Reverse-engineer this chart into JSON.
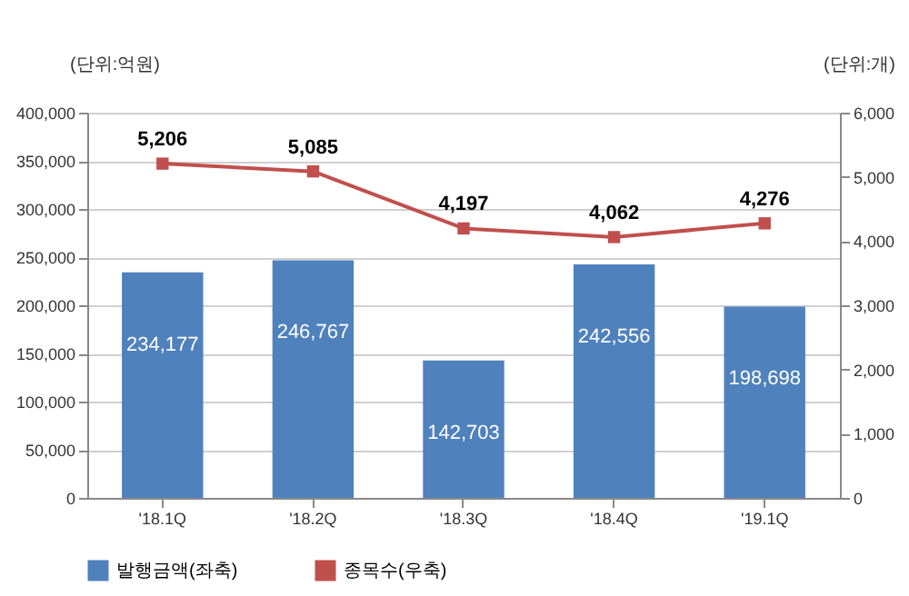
{
  "chart_data": {
    "type": "bar",
    "ylabel": "(단위:억원)",
    "y2label": "(단위:개)",
    "categories": [
      "'18.1Q",
      "'18.2Q",
      "'18.3Q",
      "'18.4Q",
      "'19.1Q"
    ],
    "series": [
      {
        "name": "발행금액(좌축)",
        "color": "#4f81bd",
        "values": [
          234177,
          246767,
          142703,
          242556,
          198698
        ],
        "value_labels": [
          "234,177",
          "246,767",
          "142,703",
          "242,556",
          "198,698"
        ]
      },
      {
        "name": "종목수(우축)",
        "type": "line",
        "axis": "y2",
        "color": "#c0504d",
        "values": [
          5206,
          5085,
          4197,
          4062,
          4276
        ],
        "value_labels": [
          "5,206",
          "5,085",
          "4,197",
          "4,062",
          "4,276"
        ]
      }
    ],
    "ylim": [
      0,
      400000
    ],
    "yticks": [
      {
        "value": 0,
        "label": "0"
      },
      {
        "value": 50000,
        "label": "50,000"
      },
      {
        "value": 100000,
        "label": "100,000"
      },
      {
        "value": 150000,
        "label": "150,000"
      },
      {
        "value": 200000,
        "label": "200,000"
      },
      {
        "value": 250000,
        "label": "250,000"
      },
      {
        "value": 300000,
        "label": "300,000"
      },
      {
        "value": 350000,
        "label": "350,000"
      },
      {
        "value": 400000,
        "label": "400,000"
      }
    ],
    "y2lim": [
      0,
      6000
    ],
    "y2ticks": [
      {
        "value": 0,
        "label": "0"
      },
      {
        "value": 1000,
        "label": "1,000"
      },
      {
        "value": 2000,
        "label": "2,000"
      },
      {
        "value": 3000,
        "label": "3,000"
      },
      {
        "value": 4000,
        "label": "4,000"
      },
      {
        "value": 5000,
        "label": "5,000"
      },
      {
        "value": 6000,
        "label": "6,000"
      }
    ],
    "grid": "y",
    "legend": "bottom",
    "marker": "square",
    "line_style": "solid"
  }
}
